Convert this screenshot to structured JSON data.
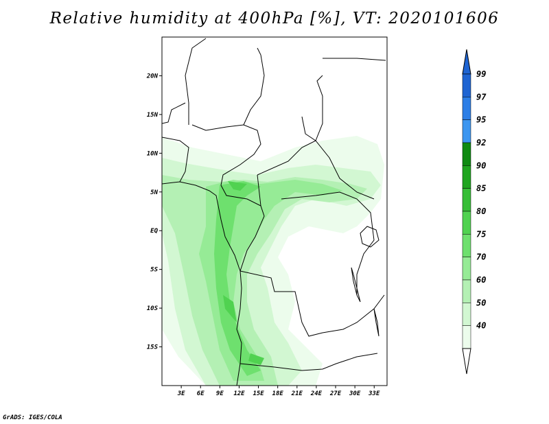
{
  "title": "Relative humidity at 400hPa [%], VT: 2020101606",
  "credit": "GrADS: IGES/COLA",
  "map": {
    "lon_range": [
      0,
      35
    ],
    "lat_range": [
      -20,
      25
    ],
    "lat_ticks": [
      {
        "value": 20,
        "label": "20N"
      },
      {
        "value": 15,
        "label": "15N"
      },
      {
        "value": 10,
        "label": "10N"
      },
      {
        "value": 5,
        "label": "5N"
      },
      {
        "value": 0,
        "label": "EQ"
      },
      {
        "value": -5,
        "label": "5S"
      },
      {
        "value": -10,
        "label": "10S"
      },
      {
        "value": -15,
        "label": "15S"
      }
    ],
    "lon_ticks": [
      {
        "value": 3,
        "label": "3E"
      },
      {
        "value": 6,
        "label": "6E"
      },
      {
        "value": 9,
        "label": "9E"
      },
      {
        "value": 12,
        "label": "12E"
      },
      {
        "value": 15,
        "label": "15E"
      },
      {
        "value": 18,
        "label": "18E"
      },
      {
        "value": 21,
        "label": "21E"
      },
      {
        "value": 24,
        "label": "24E"
      },
      {
        "value": 27,
        "label": "27E"
      },
      {
        "value": 30,
        "label": "30E"
      },
      {
        "value": 33,
        "label": "33E"
      }
    ]
  },
  "colorbar": {
    "levels": [
      {
        "label": "99",
        "color": "#1e64d2"
      },
      {
        "label": "97",
        "color": "#2c7ee6"
      },
      {
        "label": "95",
        "color": "#3c96f0"
      },
      {
        "label": "92",
        "color": "#0f8a12"
      },
      {
        "label": "90",
        "color": "#1fa51f"
      },
      {
        "label": "85",
        "color": "#37be37"
      },
      {
        "label": "80",
        "color": "#50d250"
      },
      {
        "label": "75",
        "color": "#6ee06e"
      },
      {
        "label": "70",
        "color": "#96eb96"
      },
      {
        "label": "60",
        "color": "#b4f0b4"
      },
      {
        "label": "50",
        "color": "#d2f7d2"
      },
      {
        "label": "40",
        "color": "#ecfcec"
      }
    ],
    "top_arrow_color": "#1e64d2",
    "bottom_arrow_color": "#ffffff"
  }
}
